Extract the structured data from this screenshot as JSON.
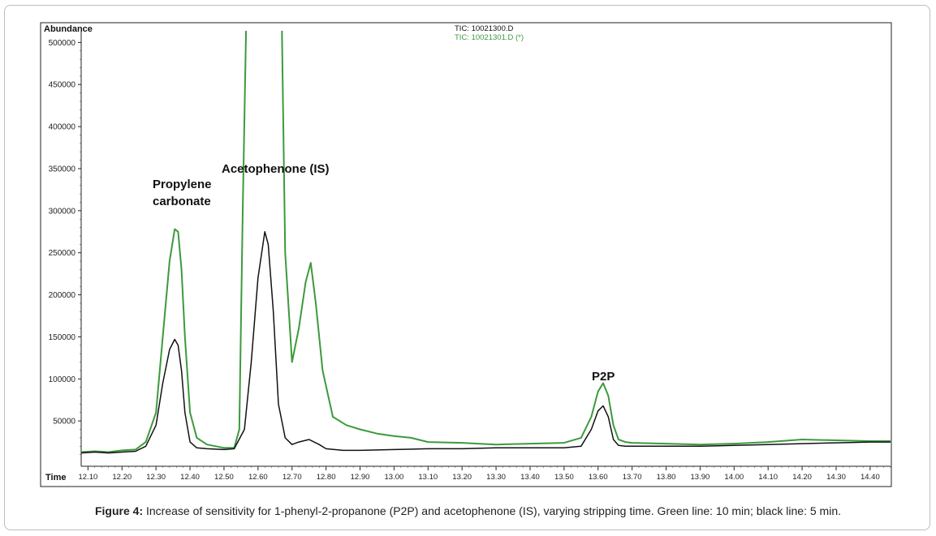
{
  "chart_data": {
    "type": "line",
    "ylabel": "Abundance",
    "xlabel": "Time",
    "xlim": [
      12.08,
      14.46
    ],
    "ylim": [
      0,
      510000
    ],
    "x_ticks": [
      "12.10",
      "12.20",
      "12.30",
      "12.40",
      "12.50",
      "12.60",
      "12.70",
      "12.80",
      "12.90",
      "13.00",
      "13.10",
      "13.20",
      "13.30",
      "13.40",
      "13.50",
      "13.60",
      "13.70",
      "13.80",
      "13.90",
      "14.00",
      "14.10",
      "14.20",
      "14.30",
      "14.40"
    ],
    "y_ticks": [
      "50000",
      "100000",
      "150000",
      "200000",
      "250000",
      "300000",
      "350000",
      "400000",
      "450000",
      "500000"
    ],
    "legend": [
      {
        "label": "TIC: 10021300.D",
        "color": "#111111"
      },
      {
        "label": "TIC: 10021301.D (*)",
        "color": "#3c9a3c"
      }
    ],
    "annotations": [
      "Propylene",
      "carbonate",
      "Acetophenone (IS)",
      "P2P"
    ],
    "series": [
      {
        "color": "#3c9a3c",
        "x": [
          12.08,
          12.12,
          12.16,
          12.2,
          12.24,
          12.27,
          12.3,
          12.32,
          12.34,
          12.355,
          12.365,
          12.375,
          12.385,
          12.4,
          12.42,
          12.45,
          12.5,
          12.53,
          12.545,
          12.555,
          12.565,
          12.575,
          12.6,
          12.62,
          12.65,
          12.665,
          12.67,
          12.68,
          12.7,
          12.72,
          12.74,
          12.755,
          12.77,
          12.79,
          12.82,
          12.86,
          12.9,
          12.95,
          13.0,
          13.05,
          13.1,
          13.2,
          13.3,
          13.4,
          13.5,
          13.55,
          13.58,
          13.6,
          13.615,
          13.63,
          13.645,
          13.66,
          13.68,
          13.7,
          13.8,
          13.9,
          14.0,
          14.1,
          14.2,
          14.3,
          14.4,
          14.46
        ],
        "y": [
          13000,
          14000,
          13000,
          15000,
          16000,
          25000,
          60000,
          150000,
          240000,
          278000,
          275000,
          230000,
          150000,
          60000,
          30000,
          22000,
          18000,
          18000,
          40000,
          300000,
          520000,
          520000,
          520000,
          520000,
          520000,
          520000,
          520000,
          250000,
          120000,
          160000,
          215000,
          238000,
          190000,
          110000,
          55000,
          45000,
          40000,
          35000,
          32000,
          30000,
          25000,
          24000,
          22000,
          23000,
          24000,
          30000,
          55000,
          85000,
          95000,
          80000,
          45000,
          28000,
          25000,
          24000,
          23000,
          22000,
          23000,
          25000,
          28000,
          27000,
          26000,
          26000
        ]
      },
      {
        "color": "#111111",
        "x": [
          12.08,
          12.12,
          12.16,
          12.2,
          12.24,
          12.27,
          12.3,
          12.32,
          12.34,
          12.355,
          12.365,
          12.375,
          12.385,
          12.4,
          12.42,
          12.45,
          12.5,
          12.53,
          12.56,
          12.58,
          12.6,
          12.62,
          12.63,
          12.645,
          12.66,
          12.68,
          12.7,
          12.72,
          12.75,
          12.78,
          12.8,
          12.85,
          12.9,
          13.0,
          13.1,
          13.2,
          13.3,
          13.4,
          13.5,
          13.55,
          13.58,
          13.6,
          13.615,
          13.63,
          13.645,
          13.66,
          13.68,
          13.7,
          13.8,
          13.9,
          14.0,
          14.1,
          14.2,
          14.3,
          14.4,
          14.46
        ],
        "y": [
          12000,
          13000,
          12000,
          13000,
          14000,
          20000,
          45000,
          95000,
          135000,
          147000,
          140000,
          110000,
          60000,
          25000,
          18000,
          17000,
          16000,
          17000,
          40000,
          120000,
          220000,
          275000,
          260000,
          180000,
          70000,
          30000,
          22000,
          25000,
          28000,
          22000,
          17000,
          15000,
          15000,
          16000,
          17000,
          17000,
          18000,
          18000,
          18000,
          20000,
          40000,
          62000,
          68000,
          55000,
          28000,
          21000,
          20000,
          20000,
          20000,
          20000,
          21000,
          22000,
          23000,
          24000,
          25000,
          25000
        ]
      }
    ]
  },
  "caption": {
    "bold": "Figure 4:",
    "text": " Increase of sensitivity for 1-phenyl-2-propanone (P2P) and acetophenone (IS), varying stripping time. Green line: 10 min; black line: 5 min."
  }
}
